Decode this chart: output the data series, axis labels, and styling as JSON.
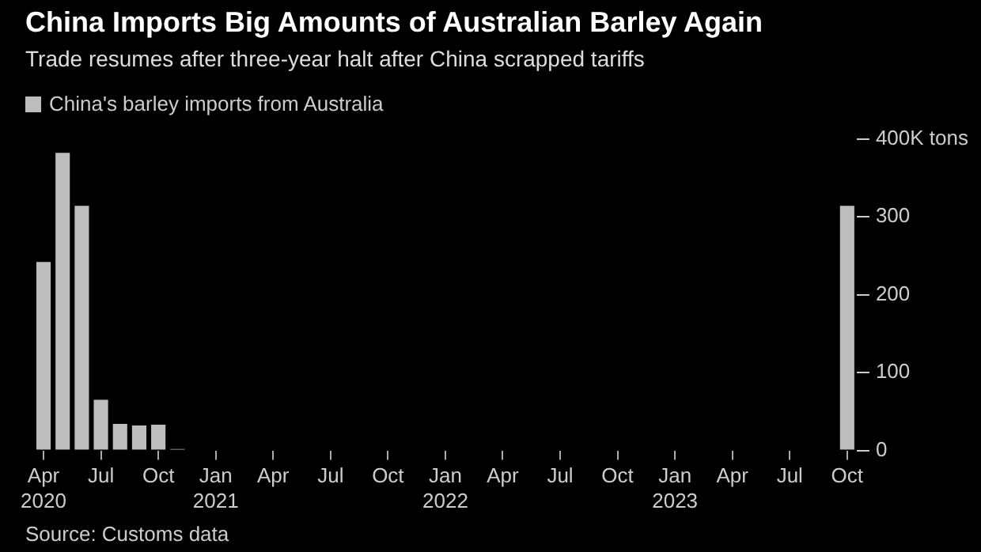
{
  "chart_data": {
    "type": "bar",
    "title": "China Imports Big Amounts of Australian Barley Again",
    "subtitle": "Trade resumes after three-year halt after China scrapped tariffs",
    "categories": [
      "Apr 2020",
      null,
      null,
      "Jul",
      null,
      null,
      "Oct",
      null,
      null,
      "Jan 2021",
      null,
      null,
      "Apr",
      null,
      null,
      "Jul",
      null,
      null,
      "Oct",
      null,
      null,
      "Jan 2022",
      null,
      null,
      "Apr",
      null,
      null,
      "Jul",
      null,
      null,
      "Oct",
      null,
      null,
      "Jan 2023",
      null,
      null,
      "Apr",
      null,
      null,
      "Jul",
      null,
      null,
      "Oct"
    ],
    "series": [
      {
        "name": "China's barley imports from Australia",
        "color": "#bdbdbd",
        "values": [
          242,
          382,
          314,
          65,
          34,
          32,
          33,
          2,
          0,
          0,
          0,
          0,
          0,
          0,
          0,
          0,
          0,
          0,
          0,
          0,
          0,
          0,
          0,
          0,
          0,
          0,
          0,
          0,
          0,
          0,
          0,
          0,
          0,
          0,
          0,
          0,
          0,
          0,
          0,
          0,
          0,
          0,
          314
        ]
      }
    ],
    "ylim": [
      0,
      400
    ],
    "yticks": [
      0,
      100,
      200,
      300,
      {
        "value": 400,
        "label": "400K tons"
      }
    ],
    "grid": false,
    "legend": "top left",
    "annotations": [
      "Source: Customs data"
    ]
  }
}
